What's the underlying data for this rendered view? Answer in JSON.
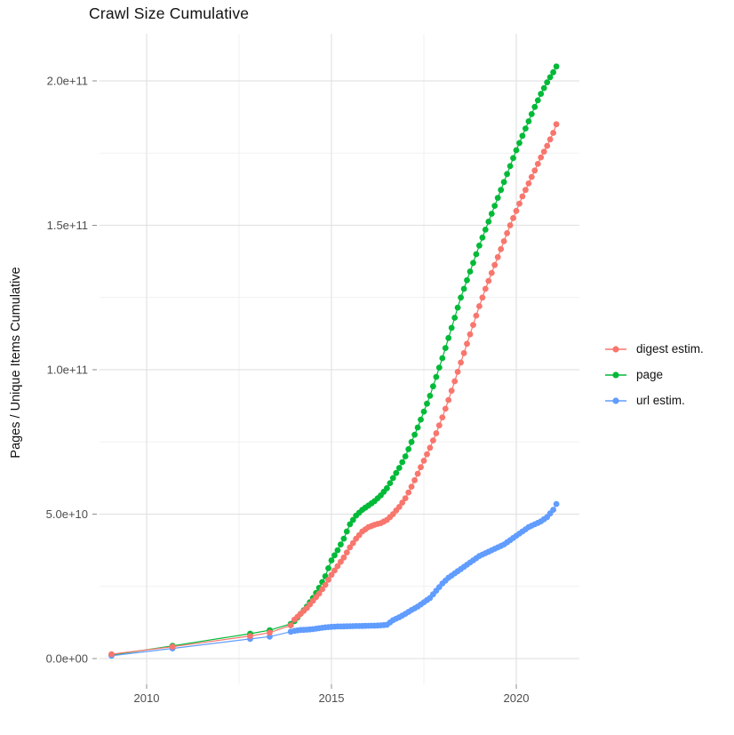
{
  "chart_data": {
    "type": "scatter",
    "title": "Crawl Size Cumulative",
    "xlabel": "",
    "ylabel": "Pages / Unique Items Cumulative",
    "legend_position": "right",
    "grid": true,
    "background": "#ffffff",
    "grid_major_color": "#e3e3e3",
    "grid_minor_color": "#f1f1f1",
    "tick_color": "#8c8c8c",
    "tick_label_color": "#4d4d4d",
    "x_ticks": [
      {
        "value": 2010,
        "label": "2010"
      },
      {
        "value": 2015,
        "label": "2015"
      },
      {
        "value": 2020,
        "label": "2020"
      }
    ],
    "x_minor": [
      2012.5,
      2017.5
    ],
    "y_unit": 1000000000.0,
    "y_ticks": [
      {
        "value": 0,
        "label": "0.0e+00"
      },
      {
        "value": 50,
        "label": "5.0e+10"
      },
      {
        "value": 100,
        "label": "1.0e+11"
      },
      {
        "value": 150,
        "label": "1.5e+11"
      },
      {
        "value": 200,
        "label": "2.0e+11"
      }
    ],
    "y_minor": [
      25,
      75,
      125,
      175
    ],
    "xlim": [
      2008.7,
      2021.5
    ],
    "ylim": [
      0,
      216
    ],
    "series": [
      {
        "name": "digest estim.",
        "color": "#F8766D",
        "z": 3,
        "early": [
          [
            2009.05,
            1.5
          ],
          [
            2010.7,
            4.1
          ],
          [
            2012.8,
            7.8
          ],
          [
            2013.33,
            9.0
          ],
          [
            2013.9,
            11.5
          ]
        ],
        "monthly_start": 2014.0,
        "monthly_step_years": 0.083333,
        "monthly": [
          13.5,
          14.5,
          15.5,
          16.5,
          17.5,
          18.75,
          20,
          21.25,
          22.5,
          24,
          25.5,
          27.25,
          29,
          30.5,
          32,
          33.5,
          35,
          36.75,
          38.5,
          40,
          41.5,
          42.75,
          44,
          44.75,
          45.5,
          45.9,
          46.3,
          46.6,
          46.9,
          47.45,
          48,
          49,
          50,
          51.25,
          52.5,
          54,
          55.5,
          57.5,
          59.5,
          61.75,
          64,
          66.25,
          68.5,
          70.75,
          73,
          75.5,
          78,
          80.75,
          83.5,
          86.5,
          89.5,
          92.75,
          96,
          99.25,
          102.5,
          105.75,
          109,
          112.25,
          115.5,
          118.75,
          122,
          125,
          128,
          130.75,
          133.5,
          136.25,
          139,
          141.75,
          144.5,
          147.25,
          150,
          152.5,
          155,
          157.5,
          160,
          162.25,
          164.5,
          166.75,
          169,
          171.25,
          173.5,
          175.5,
          177.5,
          179.75,
          182,
          185
        ]
      },
      {
        "name": "page",
        "color": "#00BA38",
        "z": 1,
        "early": [
          [
            2009.05,
            1.2
          ],
          [
            2010.7,
            4.4
          ],
          [
            2012.8,
            8.6
          ],
          [
            2013.33,
            9.8
          ],
          [
            2013.9,
            12
          ]
        ],
        "monthly_start": 2014.0,
        "monthly_step_years": 0.083333,
        "monthly": [
          13,
          14.25,
          15.5,
          16.75,
          18,
          19.5,
          21,
          22.75,
          24.5,
          26.5,
          28.5,
          31.25,
          34,
          35.75,
          37.5,
          39.5,
          41.5,
          44,
          46.5,
          48,
          49.5,
          50.5,
          51.5,
          52.25,
          53,
          53.75,
          54.5,
          55.5,
          56.5,
          57.75,
          59,
          60.75,
          62.5,
          64.25,
          66,
          68,
          70,
          72.5,
          75,
          77.5,
          80,
          82.75,
          85.5,
          88.25,
          91,
          94.25,
          97.5,
          100.75,
          104,
          107.5,
          111,
          114.5,
          118,
          121.5,
          125,
          128,
          131,
          134,
          137,
          140,
          143,
          145.75,
          148.5,
          151.25,
          154,
          156.75,
          159.5,
          162.25,
          165,
          167.75,
          170.5,
          173.25,
          176,
          178.5,
          181,
          183.5,
          186,
          188.5,
          191,
          193.25,
          195.5,
          197.5,
          199.5,
          201.25,
          203,
          205
        ]
      },
      {
        "name": "url estim.",
        "color": "#619CFF",
        "z": 2,
        "early": [
          [
            2009.05,
            1.0
          ],
          [
            2010.7,
            3.5
          ],
          [
            2012.8,
            6.8
          ],
          [
            2013.33,
            7.6
          ],
          [
            2013.9,
            9.3
          ]
        ],
        "monthly_start": 2014.0,
        "monthly_step_years": 0.083333,
        "monthly": [
          9.6,
          9.75,
          9.9,
          9.95,
          10,
          10.1,
          10.2,
          10.35,
          10.5,
          10.65,
          10.8,
          10.9,
          11,
          11.05,
          11.1,
          11.12,
          11.15,
          11.17,
          11.2,
          11.22,
          11.25,
          11.27,
          11.3,
          11.32,
          11.35,
          11.37,
          11.4,
          11.45,
          11.5,
          11.6,
          11.7,
          12.5,
          13.3,
          13.8,
          14.3,
          14.9,
          15.5,
          16.15,
          16.8,
          17.4,
          18,
          18.75,
          19.5,
          20.25,
          21,
          22.25,
          23.5,
          24.75,
          26,
          27,
          28,
          28.75,
          29.5,
          30.25,
          31,
          31.75,
          32.5,
          33.25,
          34,
          34.75,
          35.5,
          36,
          36.5,
          37,
          37.5,
          38,
          38.5,
          39,
          39.5,
          40.25,
          41,
          41.75,
          42.5,
          43.25,
          44,
          44.75,
          45.5,
          46,
          46.5,
          47,
          47.5,
          48.25,
          49,
          50.25,
          51.5,
          53.5
        ]
      }
    ]
  }
}
